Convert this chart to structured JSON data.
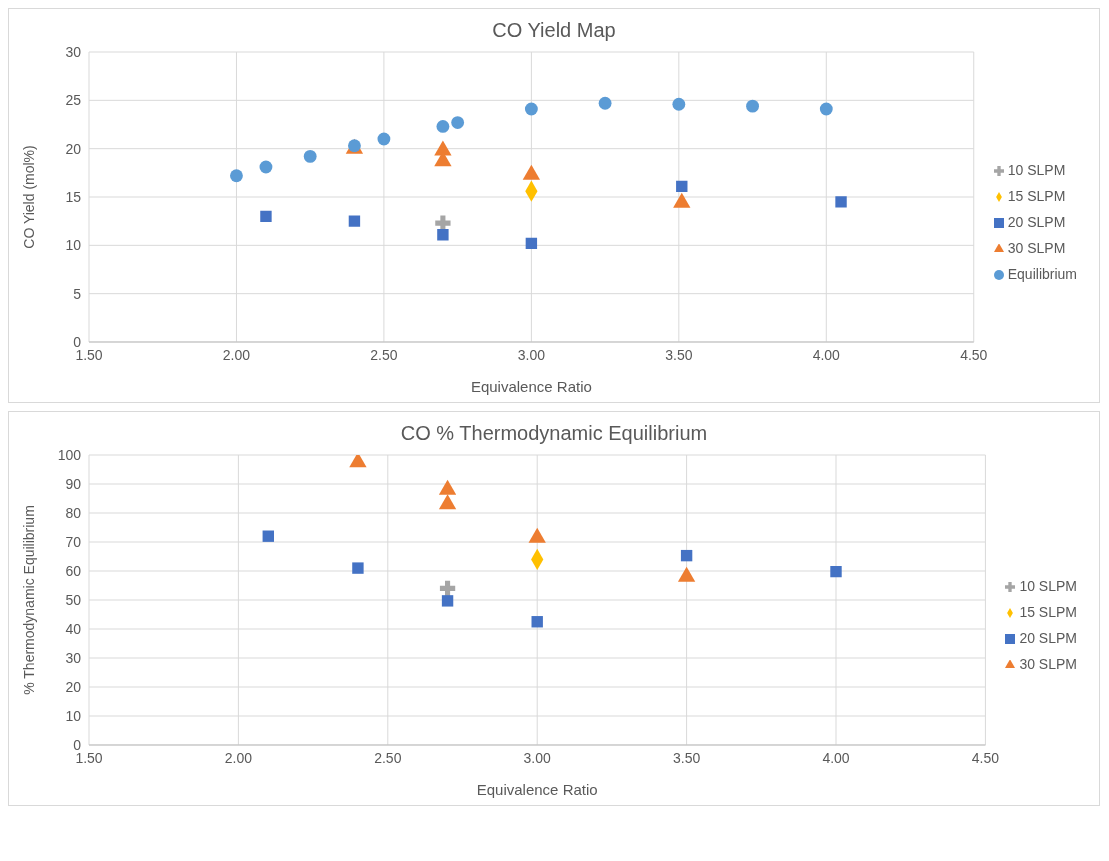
{
  "chart_data": [
    {
      "type": "scatter",
      "title": "CO Yield Map",
      "xlabel": "Equivalence Ratio",
      "ylabel": "CO Yield (mol%)",
      "xlim": [
        1.5,
        4.5
      ],
      "xticks": [
        {
          "value": 1.5,
          "label": "1.50"
        },
        {
          "value": 2,
          "label": "2.00"
        },
        {
          "value": 2.5,
          "label": "2.50"
        },
        {
          "value": 3,
          "label": "3.00"
        },
        {
          "value": 3.5,
          "label": "3.50"
        },
        {
          "value": 4,
          "label": "4.00"
        },
        {
          "value": 4.5,
          "label": "4.50"
        }
      ],
      "ylim": [
        0,
        30
      ],
      "yticks": [
        0,
        5,
        10,
        15,
        20,
        25,
        30
      ],
      "grid": true,
      "legend": "right",
      "series": [
        {
          "name": "10 SLPM",
          "color": "#a5a5a5",
          "marker": "cross",
          "x": [
            2.7
          ],
          "values": [
            12.3
          ]
        },
        {
          "name": "15 SLPM",
          "color": "#ffc000",
          "marker": "diamond",
          "x": [
            3.0
          ],
          "values": [
            15.6
          ]
        },
        {
          "name": "20 SLPM",
          "color": "#4472c4",
          "marker": "square",
          "x": [
            2.1,
            2.4,
            2.7,
            3.0,
            3.51,
            4.05
          ],
          "values": [
            13.0,
            12.5,
            11.1,
            10.2,
            16.1,
            14.5
          ]
        },
        {
          "name": "30 SLPM",
          "color": "#ed7d31",
          "marker": "triangle",
          "x": [
            2.4,
            2.7,
            2.7,
            3.0,
            3.51
          ],
          "values": [
            20.0,
            19.8,
            18.7,
            17.3,
            14.4
          ]
        },
        {
          "name": "Equilibrium",
          "color": "#5b9bd5",
          "marker": "circle",
          "x": [
            2.0,
            2.1,
            2.25,
            2.4,
            2.5,
            2.7,
            2.75,
            3.0,
            3.25,
            3.5,
            3.75,
            4.0
          ],
          "values": [
            17.2,
            18.1,
            19.2,
            20.3,
            21.0,
            22.3,
            22.7,
            24.1,
            24.7,
            24.6,
            24.4,
            24.1
          ]
        }
      ]
    },
    {
      "type": "scatter",
      "title": "CO % Thermodynamic Equilibrium",
      "xlabel": "Equivalence Ratio",
      "ylabel": "% Thermodynamic Equilibrium",
      "xlim": [
        1.5,
        4.5
      ],
      "xticks": [
        {
          "value": 1.5,
          "label": "1.50"
        },
        {
          "value": 2,
          "label": "2.00"
        },
        {
          "value": 2.5,
          "label": "2.50"
        },
        {
          "value": 3,
          "label": "3.00"
        },
        {
          "value": 3.5,
          "label": "3.50"
        },
        {
          "value": 4,
          "label": "4.00"
        },
        {
          "value": 4.5,
          "label": "4.50"
        }
      ],
      "ylim": [
        0,
        100
      ],
      "yticks": [
        0,
        10,
        20,
        30,
        40,
        50,
        60,
        70,
        80,
        90,
        100
      ],
      "grid": true,
      "legend": "right",
      "series": [
        {
          "name": "10 SLPM",
          "color": "#a5a5a5",
          "marker": "cross",
          "x": [
            2.7
          ],
          "values": [
            54
          ]
        },
        {
          "name": "15 SLPM",
          "color": "#ffc000",
          "marker": "diamond",
          "x": [
            3.0
          ],
          "values": [
            64
          ]
        },
        {
          "name": "20 SLPM",
          "color": "#4472c4",
          "marker": "square",
          "x": [
            2.1,
            2.4,
            2.7,
            3.0,
            3.5,
            4.0
          ],
          "values": [
            72,
            61,
            49.7,
            42.5,
            65.3,
            59.8
          ]
        },
        {
          "name": "30 SLPM",
          "color": "#ed7d31",
          "marker": "triangle",
          "x": [
            2.4,
            2.7,
            2.7,
            3.0,
            3.5
          ],
          "values": [
            97.5,
            88,
            83,
            71.5,
            58
          ]
        }
      ]
    }
  ]
}
